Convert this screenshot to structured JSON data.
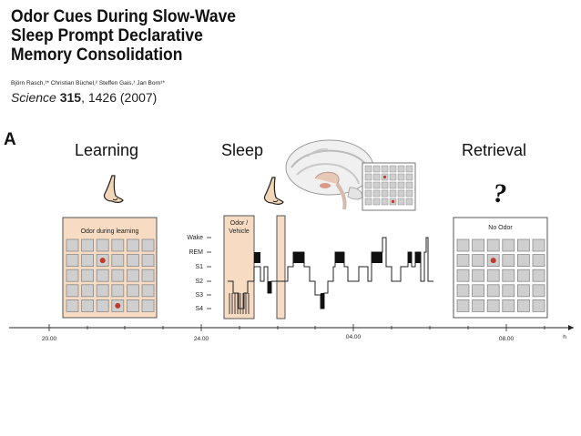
{
  "paper": {
    "title_lines": [
      "Odor Cues During Slow-Wave",
      "Sleep Prompt Declarative",
      "Memory Consolidation"
    ],
    "authors": "Björn Rasch,¹* Christian Büchel,² Steffen Gais,¹ Jan Born¹*",
    "journal": "Science",
    "volume": "315",
    "pages_year": ", 1426 (2007)"
  },
  "figure": {
    "panel_label": "A",
    "stages": {
      "learning": "Learning",
      "sleep": "Sleep",
      "retrieval": "Retrieval"
    },
    "learning_box_label": "Odor during learning",
    "odor_vehicle": [
      "Odor /",
      "Vehicle"
    ],
    "no_odor_label": "No Odor",
    "question_mark": "?",
    "sleep_stage_labels": [
      "Wake",
      "REM",
      "S1",
      "S2",
      "S3",
      "S4"
    ],
    "time_ticks": [
      "20.00",
      "24.00",
      "04.00",
      "08.00"
    ],
    "time_unit": "h",
    "colors": {
      "peach": "#f7dcc3",
      "box_border": "#555555",
      "card": "#cfcfcf",
      "card_border": "#8a8a8a",
      "target": "#c0392b"
    },
    "icons": [
      "nose-icon",
      "brain-icon",
      "question-icon",
      "grid-thumbnail-icon"
    ]
  }
}
